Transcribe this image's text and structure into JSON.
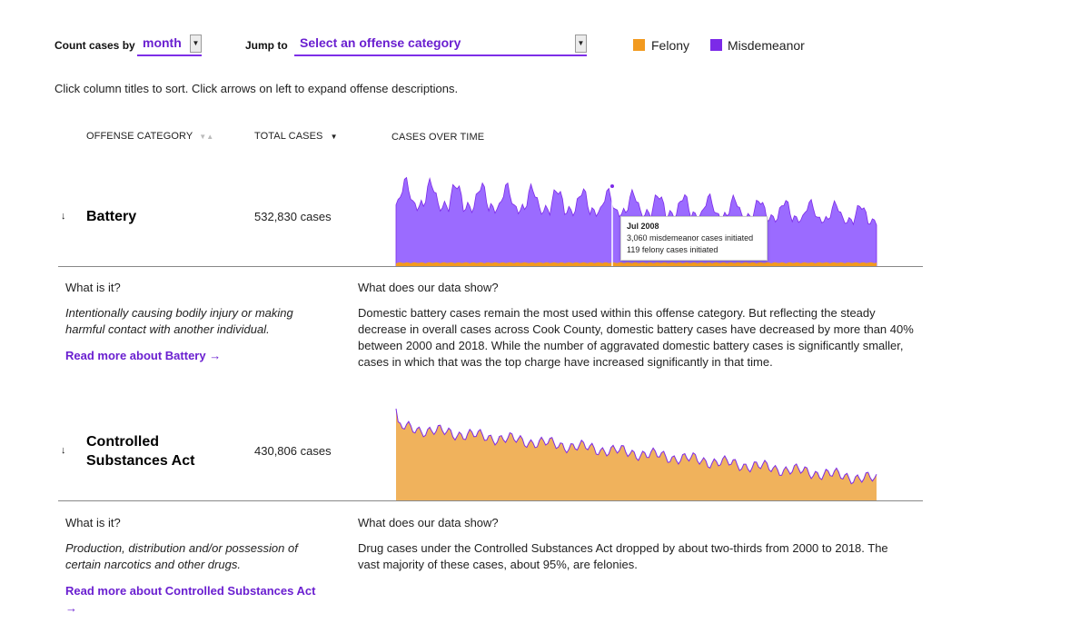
{
  "colors": {
    "felony": "#f29a1f",
    "misdemeanor": "#7c2ae8",
    "accent": "#6a1fd0",
    "felony_fill": "#f0b25c",
    "misdemeanor_fill": "#9b6bff"
  },
  "controls": {
    "count_label": "Count cases by",
    "count_value": "month",
    "jump_label": "Jump to",
    "jump_value": "Select an offense category"
  },
  "legend": [
    {
      "label": "Felony",
      "color": "#f29a1f"
    },
    {
      "label": "Misdemeanor",
      "color": "#7c2ae8"
    }
  ],
  "instructions": "Click column titles to sort. Click arrows on left to expand offense descriptions.",
  "columns": {
    "category": "OFFENSE CATEGORY",
    "total": "TOTAL CASES",
    "over_time": "CASES OVER TIME"
  },
  "rows": [
    {
      "title": "Battery",
      "total": "532,830 cases",
      "expander": "↓",
      "what_label": "What is it?",
      "what_desc": "Intentionally causing bodily injury or making harmful contact with another individual.",
      "read_more": "Read more about Battery →",
      "data_label": "What does our data show?",
      "data_text": "Domestic battery cases remain the most used within this offense category. But reflecting the steady decrease in overall cases across Cook County, domestic battery cases have decreased by more than 40% between 2000 and 2018. While the number of aggravated domestic battery cases is significantly smaller, cases in which that was the top charge have increased significantly in that time.",
      "tooltip": {
        "title": "Jul 2008",
        "line1": "3,060 misdemeanor cases initiated",
        "line2": "119 felony cases initiated"
      }
    },
    {
      "title_line1": "Controlled",
      "title_line2": "Substances Act",
      "total": "430,806 cases",
      "expander": "↓",
      "what_label": "What is it?",
      "what_desc": "Production, distribution and/or possession of certain narcotics and other drugs.",
      "read_more": "Read more about Controlled Substances Act",
      "read_more_arrow": "→",
      "data_label": "What does our data show?",
      "data_text": "Drug cases under the Controlled Substances Act dropped by about two-thirds from 2000 to 2018. The vast majority of these cases, about 95%, are felonies."
    }
  ]
}
